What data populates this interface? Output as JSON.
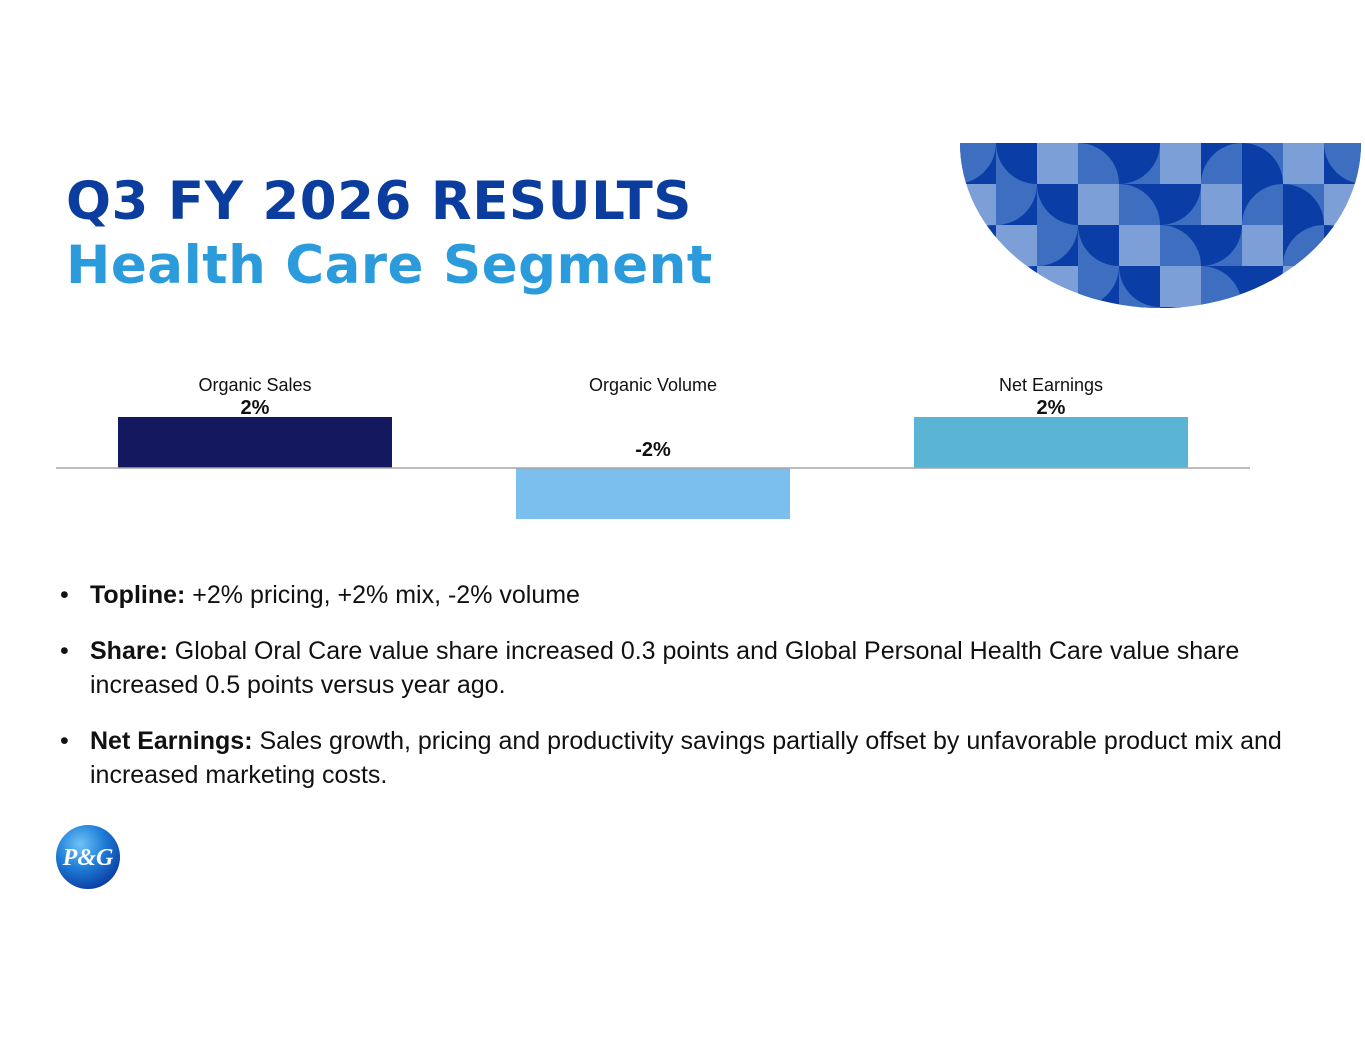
{
  "colors": {
    "title_primary": "#0a3d9e",
    "title_secondary": "#2b9bdc",
    "bar_organic_sales": "#14185e",
    "bar_organic_volume": "#7bbfee",
    "bar_net_earnings": "#5ab5d4",
    "baseline": "#a6a6a6",
    "deco_dark": "#0a3ea6",
    "deco_mid": "#3e6ec0",
    "deco_light": "#7d9fd8"
  },
  "header": {
    "title": "Q3 FY 2026 RESULTS",
    "subtitle": "Health Care Segment"
  },
  "chart_data": {
    "type": "bar",
    "categories": [
      "Organic Sales",
      "Organic Volume",
      "Net Earnings"
    ],
    "values": [
      2,
      -2,
      2
    ],
    "value_labels": [
      "2%",
      "-2%",
      "2%"
    ],
    "ylim": [
      -2,
      2
    ],
    "grid": false
  },
  "bullets": [
    {
      "label": "Topline:",
      "text": " +2% pricing, +2% mix, -2% volume"
    },
    {
      "label": "Share:",
      "text": " Global Oral Care value share increased 0.3 points and Global Personal Health Care value share increased 0.5 points versus year ago."
    },
    {
      "label": "Net Earnings:",
      "text": " Sales growth, pricing and productivity savings partially offset by unfavorable product mix and increased marketing costs."
    }
  ],
  "logo": {
    "text": "P&G",
    "icon": "pg-logo-icon"
  },
  "decoration": {
    "icon": "half-circle-pattern-icon"
  }
}
